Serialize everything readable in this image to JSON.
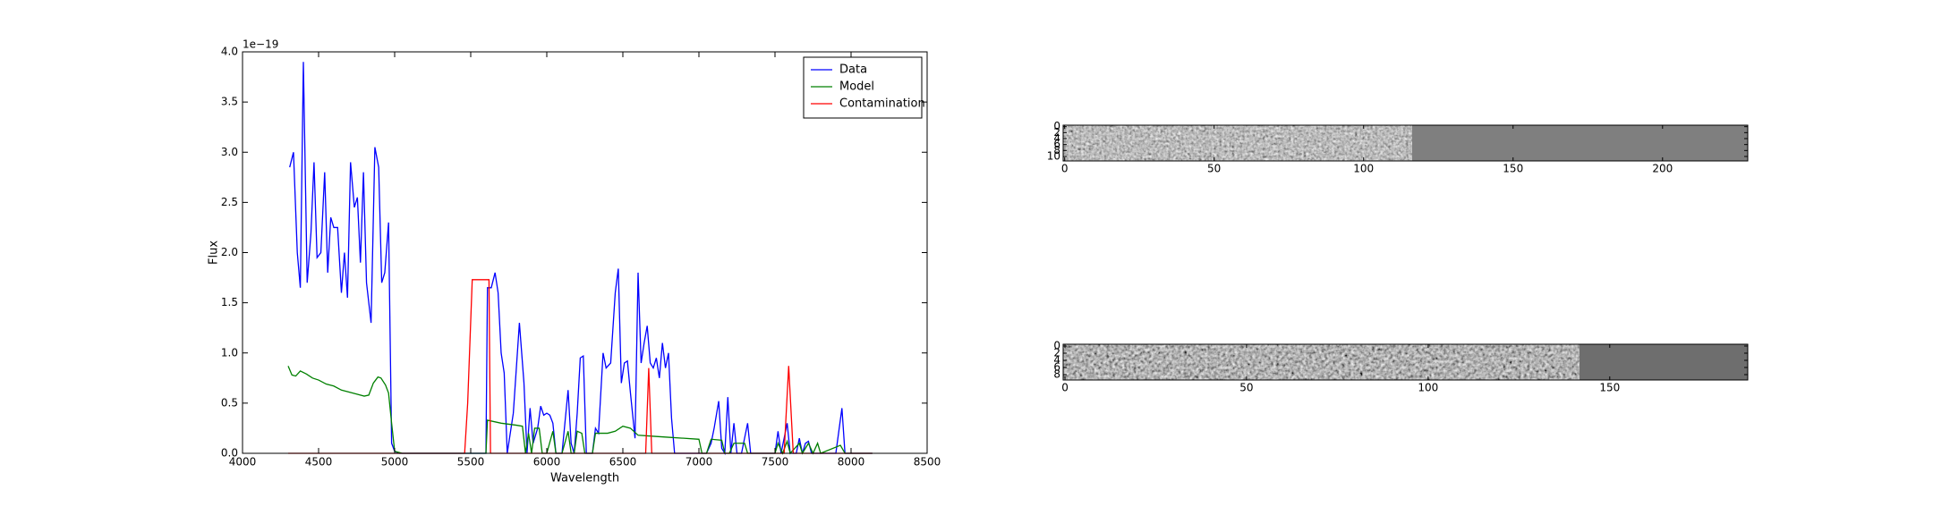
{
  "chart_data": [
    {
      "type": "line",
      "x_label": "Wavelength",
      "y_label": "Flux",
      "y_offset_label": "1e−19",
      "xlim": [
        4000,
        8500
      ],
      "xticks": [
        4000,
        4500,
        5000,
        5500,
        6000,
        6500,
        7000,
        7500,
        8000,
        8500
      ],
      "ylim": [
        0,
        4
      ],
      "yticks": [
        {
          "value": 0,
          "label": "0.0"
        },
        {
          "value": 0.5,
          "label": "0.5"
        },
        {
          "value": 1,
          "label": "1.0"
        },
        {
          "value": 1.5,
          "label": "1.5"
        },
        {
          "value": 2,
          "label": "2.0"
        },
        {
          "value": 2.5,
          "label": "2.5"
        },
        {
          "value": 3,
          "label": "3.0"
        },
        {
          "value": 3.5,
          "label": "3.5"
        },
        {
          "value": 4,
          "label": "4.0"
        }
      ],
      "legend": "upper right",
      "series": [
        {
          "name": "Data",
          "color": "#0000ff",
          "x": [
            4310,
            4335,
            4360,
            4380,
            4400,
            4425,
            4450,
            4470,
            4490,
            4515,
            4540,
            4560,
            4580,
            4600,
            4625,
            4650,
            4670,
            4690,
            4710,
            4735,
            4755,
            4775,
            4795,
            4815,
            4845,
            4870,
            4895,
            4915,
            4935,
            4960,
            4980,
            5000,
            5030,
            5600,
            5610,
            5635,
            5660,
            5680,
            5700,
            5720,
            5740,
            5780,
            5820,
            5850,
            5870,
            5890,
            5910,
            5940,
            5960,
            5980,
            6000,
            6020,
            6040,
            6060,
            6100,
            6140,
            6160,
            6180,
            6200,
            6220,
            6240,
            6260,
            6300,
            6320,
            6340,
            6370,
            6390,
            6420,
            6450,
            6470,
            6490,
            6510,
            6530,
            6550,
            6580,
            6600,
            6620,
            6640,
            6660,
            6680,
            6700,
            6720,
            6740,
            6760,
            6780,
            6800,
            6820,
            6840,
            7050,
            7080,
            7100,
            7130,
            7150,
            7170,
            7190,
            7210,
            7230,
            7250,
            7280,
            7320,
            7340,
            7500,
            7520,
            7540,
            7580,
            7600,
            7640,
            7660,
            7680,
            7700,
            7720,
            7740,
            7900,
            7940,
            7960,
            8140
          ],
          "values": [
            2.85,
            3.0,
            2.0,
            1.65,
            3.9,
            1.7,
            2.2,
            2.9,
            1.95,
            2.0,
            2.8,
            1.8,
            2.35,
            2.25,
            2.25,
            1.6,
            2.0,
            1.55,
            2.9,
            2.45,
            2.55,
            1.9,
            2.8,
            1.7,
            1.3,
            3.05,
            2.85,
            1.7,
            1.8,
            2.3,
            0.1,
            0.02,
            0.0,
            0.0,
            1.65,
            1.65,
            1.8,
            1.6,
            1.0,
            0.8,
            0.0,
            0.4,
            1.3,
            0.7,
            0.0,
            0.45,
            0.1,
            0.25,
            0.47,
            0.38,
            0.4,
            0.38,
            0.3,
            0.0,
            0.0,
            0.63,
            0.1,
            0.0,
            0.4,
            0.95,
            0.97,
            0.0,
            0.0,
            0.25,
            0.2,
            1.0,
            0.85,
            0.9,
            1.6,
            1.84,
            0.7,
            0.9,
            0.92,
            0.6,
            0.15,
            1.8,
            0.9,
            1.1,
            1.27,
            0.9,
            0.85,
            0.95,
            0.75,
            1.1,
            0.85,
            1.0,
            0.35,
            0.0,
            0.0,
            0.1,
            0.25,
            0.52,
            0.05,
            0.0,
            0.56,
            0.0,
            0.3,
            0.0,
            0.0,
            0.3,
            0.0,
            0.0,
            0.22,
            0.0,
            0.3,
            0.0,
            0.0,
            0.15,
            0.0,
            0.1,
            0.12,
            0.0,
            0.0,
            0.45,
            0.0,
            0.0
          ]
        },
        {
          "name": "Model",
          "color": "#008000",
          "x": [
            4300,
            4325,
            4350,
            4380,
            4420,
            4460,
            4500,
            4550,
            4600,
            4650,
            4700,
            4750,
            4800,
            4830,
            4860,
            4890,
            4910,
            4940,
            4960,
            4980,
            5000,
            5050,
            5600,
            5610,
            5700,
            5800,
            5840,
            5860,
            5880,
            5900,
            5920,
            5950,
            5970,
            6000,
            6040,
            6060,
            6100,
            6140,
            6160,
            6180,
            6200,
            6230,
            6250,
            6300,
            6320,
            6400,
            6450,
            6500,
            6550,
            6600,
            6700,
            6800,
            6900,
            7000,
            7020,
            7050,
            7080,
            7150,
            7170,
            7200,
            7230,
            7300,
            7320,
            7500,
            7520,
            7550,
            7580,
            7600,
            7660,
            7680,
            7720,
            7750,
            7780,
            7800,
            7930,
            7960,
            8140
          ],
          "values": [
            0.87,
            0.78,
            0.77,
            0.82,
            0.79,
            0.75,
            0.73,
            0.69,
            0.67,
            0.63,
            0.61,
            0.59,
            0.57,
            0.58,
            0.7,
            0.76,
            0.75,
            0.68,
            0.6,
            0.3,
            0.02,
            0.0,
            0.0,
            0.33,
            0.3,
            0.28,
            0.27,
            0.0,
            0.2,
            0.0,
            0.25,
            0.25,
            0.0,
            0.0,
            0.22,
            0.0,
            0.0,
            0.22,
            0.0,
            0.0,
            0.22,
            0.2,
            0.0,
            0.0,
            0.2,
            0.2,
            0.22,
            0.27,
            0.25,
            0.18,
            0.17,
            0.16,
            0.15,
            0.14,
            0.0,
            0.0,
            0.14,
            0.13,
            0.0,
            0.0,
            0.1,
            0.1,
            0.0,
            0.0,
            0.1,
            0.0,
            0.12,
            0.0,
            0.1,
            0.0,
            0.1,
            0.0,
            0.1,
            0.0,
            0.08,
            0.0,
            0.0
          ]
        },
        {
          "name": "Contamination",
          "color": "#ff0000",
          "x": [
            4300,
            5460,
            5480,
            5510,
            5620,
            5630,
            6650,
            6670,
            6690,
            7560,
            7590,
            7620,
            8140
          ],
          "values": [
            0,
            0,
            0.5,
            1.73,
            1.73,
            0,
            0,
            0.85,
            0,
            0,
            0.87,
            0,
            0
          ]
        }
      ]
    },
    {
      "type": "image",
      "xlim": [
        -0.5,
        228.5
      ],
      "ylim": [
        11.5,
        -0.5
      ],
      "xticks": [
        0,
        50,
        100,
        150,
        200
      ],
      "yticks": [
        0,
        2,
        4,
        6,
        8,
        10
      ]
    },
    {
      "type": "image",
      "xlim": [
        -0.5,
        188
      ],
      "ylim": [
        9.5,
        -0.5
      ],
      "xticks": [
        0,
        50,
        100,
        150
      ],
      "yticks": [
        0,
        2,
        4,
        6,
        8
      ]
    }
  ]
}
